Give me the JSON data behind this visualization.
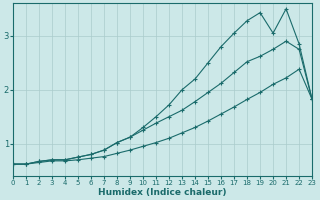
{
  "xlabel": "Humidex (Indice chaleur)",
  "ylabel": "",
  "bg_color": "#cce8e8",
  "grid_color": "#aacccc",
  "line_color": "#1a6b6b",
  "xlim": [
    0,
    23
  ],
  "ylim": [
    0.4,
    3.6
  ],
  "yticks": [
    1,
    2,
    3
  ],
  "xticks": [
    0,
    1,
    2,
    3,
    4,
    5,
    6,
    7,
    8,
    9,
    10,
    11,
    12,
    13,
    14,
    15,
    16,
    17,
    18,
    19,
    20,
    21,
    22,
    23
  ],
  "line1_x": [
    0,
    1,
    2,
    3,
    4,
    5,
    6,
    7,
    8,
    9,
    10,
    11,
    12,
    13,
    14,
    15,
    16,
    17,
    18,
    19,
    20,
    21,
    22,
    23
  ],
  "line1_y": [
    0.62,
    0.62,
    0.67,
    0.7,
    0.7,
    0.75,
    0.8,
    0.88,
    1.02,
    1.12,
    1.3,
    1.5,
    1.72,
    2.0,
    2.2,
    2.5,
    2.8,
    3.05,
    3.28,
    3.43,
    3.05,
    3.5,
    2.85,
    1.82
  ],
  "line2_x": [
    0,
    1,
    2,
    3,
    4,
    5,
    6,
    7,
    8,
    9,
    10,
    11,
    12,
    13,
    14,
    15,
    16,
    17,
    18,
    19,
    20,
    21,
    22,
    23
  ],
  "line2_y": [
    0.62,
    0.62,
    0.67,
    0.7,
    0.7,
    0.75,
    0.8,
    0.88,
    1.02,
    1.12,
    1.25,
    1.38,
    1.5,
    1.62,
    1.78,
    1.95,
    2.12,
    2.32,
    2.52,
    2.62,
    2.75,
    2.9,
    2.75,
    1.82
  ],
  "line3_x": [
    0,
    1,
    2,
    3,
    4,
    5,
    6,
    7,
    8,
    9,
    10,
    11,
    12,
    13,
    14,
    15,
    16,
    17,
    18,
    19,
    20,
    21,
    22,
    23
  ],
  "line3_y": [
    0.62,
    0.62,
    0.65,
    0.68,
    0.68,
    0.7,
    0.73,
    0.76,
    0.82,
    0.88,
    0.95,
    1.02,
    1.1,
    1.2,
    1.3,
    1.42,
    1.55,
    1.68,
    1.82,
    1.95,
    2.1,
    2.22,
    2.38,
    1.82
  ],
  "marker": "+"
}
